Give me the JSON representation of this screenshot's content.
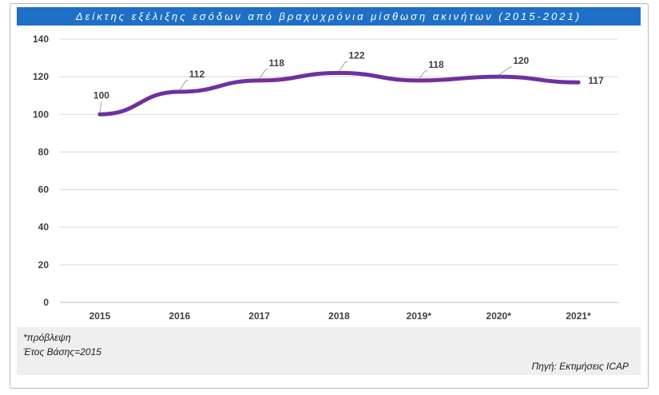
{
  "chart_data": {
    "type": "line",
    "title": "Δείκτης εξέλιξης εσόδων από βραχυχρόνια μίσθωση ακινήτων (2015-2021)",
    "categories": [
      "2015",
      "2016",
      "2017",
      "2018",
      "2019*",
      "2020*",
      "2021*"
    ],
    "series": [
      {
        "values": [
          100,
          112,
          118,
          122,
          118,
          120,
          117
        ]
      }
    ],
    "data_labels": [
      "100",
      "112",
      "118",
      "122",
      "118",
      "120",
      "117"
    ],
    "y_ticks": [
      "0",
      "20",
      "40",
      "60",
      "80",
      "100",
      "120",
      "140"
    ],
    "ylim": [
      0,
      140
    ],
    "grid": true,
    "line_color": "#7030a0"
  },
  "footer": {
    "note1": "*πρόβλεψη",
    "note2": "Έτος Βάσης=2015",
    "source": "Πηγή: Εκτιμήσεις ICAP"
  }
}
